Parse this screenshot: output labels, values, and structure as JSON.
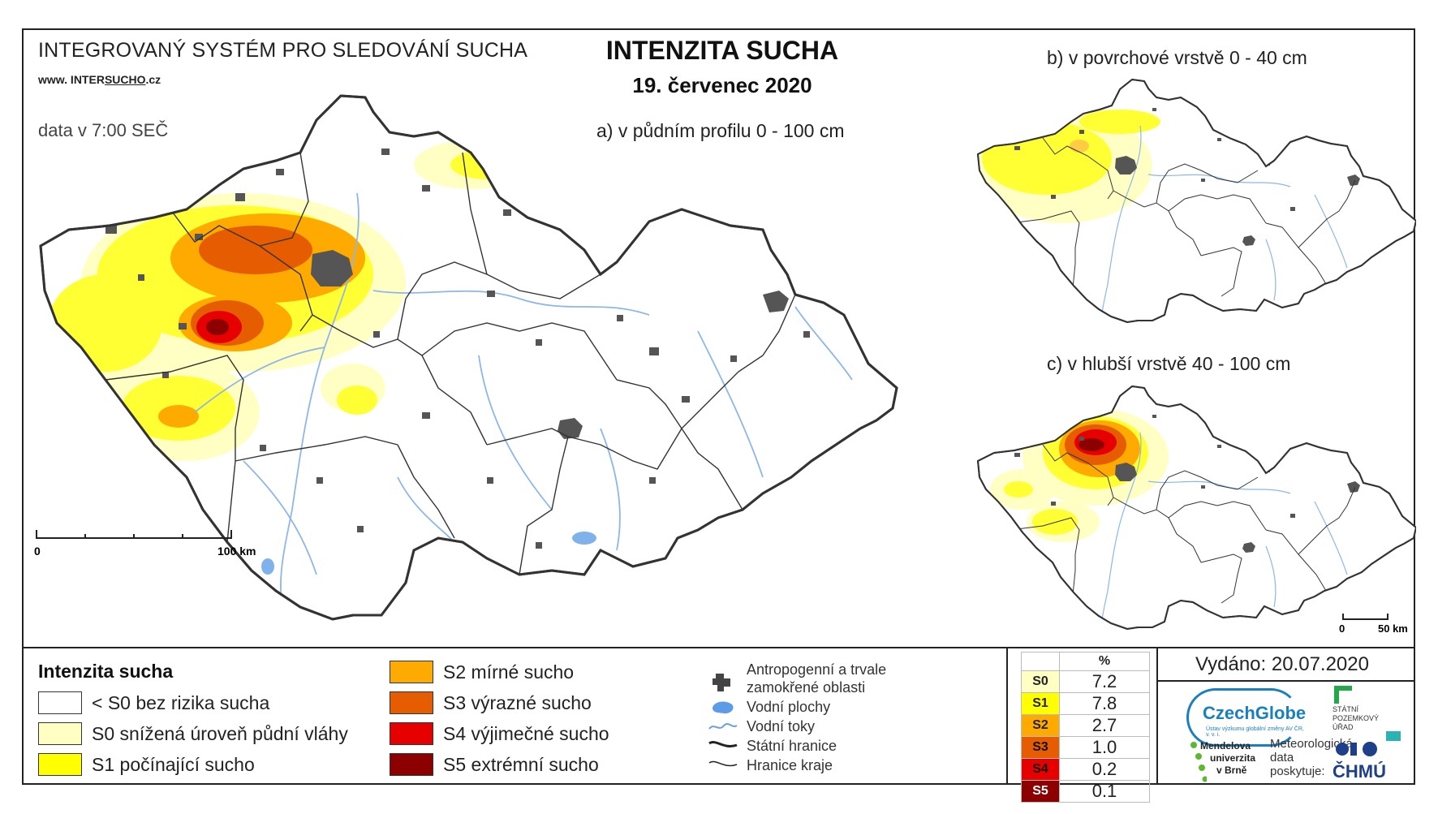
{
  "header": {
    "system_title": "INTEGROVANÝ SYSTÉM PRO SLEDOVÁNÍ SUCHA",
    "website_prefix": "www. INTER",
    "website_underlined": "SUCHO",
    "website_suffix": ".cz",
    "data_time": "data v 7:00 SEČ",
    "title": "INTENZITA SUCHA",
    "date": "19. červenec 2020"
  },
  "maps": {
    "main_subtitle": "a) v půdním profilu 0 - 100 cm",
    "surface_subtitle": "b) v povrchové vrstvě 0 - 40 cm",
    "deep_subtitle": "c) v hlubší vrstvě 40 - 100 cm",
    "main_scale": {
      "start": "0",
      "end": "100 km"
    },
    "small_scale": {
      "start": "0",
      "end": "50 km"
    }
  },
  "legend": {
    "title": "Intenzita sucha",
    "classes": [
      {
        "label": "< S0 bez rizika sucha",
        "color": "#ffffff"
      },
      {
        "label": "S0 snížená úroveň půdní vláhy",
        "color": "#ffffc4"
      },
      {
        "label": "S1 počínající sucho",
        "color": "#ffff00"
      },
      {
        "label": "S2 mírné sucho",
        "color": "#ffaa00"
      },
      {
        "label": "S3 výrazné sucho",
        "color": "#e65c00"
      },
      {
        "label": "S4 výjimečné sucho",
        "color": "#e60000"
      },
      {
        "label": "S5 extrémní sucho",
        "color": "#8c0000"
      }
    ],
    "symbols": [
      {
        "label_line1": "Antropogenní a trvale",
        "label_line2": "zamokřené oblasti",
        "icon": "urban-area-icon"
      },
      {
        "label_line1": "Vodní plochy",
        "label_line2": "",
        "icon": "water-body-icon"
      },
      {
        "label_line1": "Vodní toky",
        "label_line2": "",
        "icon": "river-icon"
      },
      {
        "label_line1": "Státní hranice",
        "label_line2": "",
        "icon": "state-border-icon"
      },
      {
        "label_line1": "Hranice kraje",
        "label_line2": "",
        "icon": "region-border-icon"
      }
    ]
  },
  "percent_table": {
    "header": "%",
    "rows": [
      {
        "code": "S0",
        "value": "7.2",
        "color": "#ffffc4"
      },
      {
        "code": "S1",
        "value": "7.8",
        "color": "#ffff00"
      },
      {
        "code": "S2",
        "value": "2.7",
        "color": "#ffaa00"
      },
      {
        "code": "S3",
        "value": "1.0",
        "color": "#e65c00"
      },
      {
        "code": "S4",
        "value": "0.2",
        "color": "#e60000"
      },
      {
        "code": "S5",
        "value": "0.1",
        "color": "#8c0000"
      }
    ]
  },
  "footer": {
    "issued": "Vydáno: 20.07.2020",
    "czechglobe": "CzechGlobe",
    "czechglobe_sub": "Ústav výzkumu globální změny AV ČR, v. v. i.",
    "spu_line1": "STÁTNÍ",
    "spu_line2": "POZEMKOVÝ",
    "spu_line3": "ÚŘAD",
    "mendel_line1": "Mendelova",
    "mendel_line2": "univerzita",
    "mendel_line3": "v Brně",
    "meteo_line1": "Meteorologická",
    "meteo_line2": "data",
    "meteo_line3": "poskytuje:",
    "chmu": "ČHMÚ"
  }
}
